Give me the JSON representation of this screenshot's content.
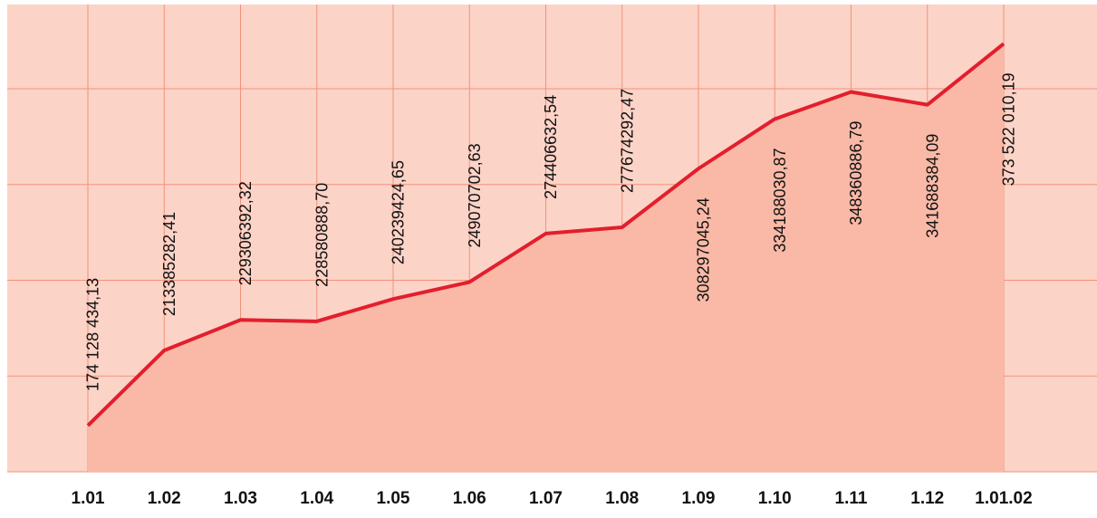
{
  "chart_data": {
    "type": "line",
    "categories": [
      "1.01",
      "1.02",
      "1.03",
      "1.04",
      "1.05",
      "1.06",
      "1.07",
      "1.08",
      "1.09",
      "1.10",
      "1.11",
      "1.12",
      "1.01.02"
    ],
    "series": [
      {
        "color": "#e31e2d",
        "fill": "#f9b9a6",
        "values": [
          174128434.13,
          213385282.41,
          229306392.32,
          228580888.7,
          240239424.65,
          249070702.63,
          274406632.54,
          277674292.47,
          308297045.24,
          334188030.87,
          348360886.79,
          341688384.09,
          373522010.19
        ],
        "value_labels": [
          "174 128 434,13",
          "213385282,41",
          "229306392,32",
          "228580888,70",
          "240239424,65",
          "249070702,63",
          "274406632,54",
          "277674292,47",
          "308297045,24",
          "334188030,87",
          "348360886,79",
          "341688384,09",
          "373 522 010,19"
        ]
      }
    ],
    "ylim": [
      150000000,
      394000000
    ],
    "yticks": [
      150000000,
      200000000,
      250000000,
      300000000,
      350000000
    ],
    "grid": true
  }
}
